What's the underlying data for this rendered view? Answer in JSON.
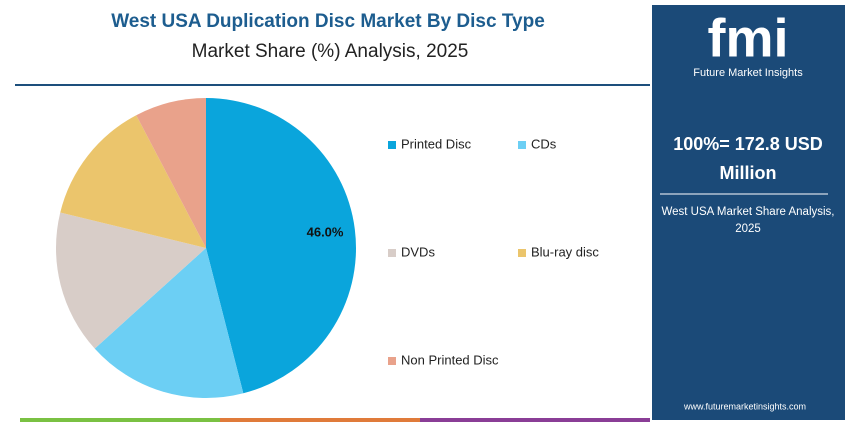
{
  "chart_data": {
    "type": "pie",
    "title": "West USA Duplication Disc Market By Disc Type",
    "subtitle": "Market Share (%) Analysis, 2025",
    "categories": [
      "Printed Disc",
      "CDs",
      "DVDs",
      "Blu-ray disc",
      "Non Printed Disc"
    ],
    "values": [
      46.0,
      17.3,
      15.5,
      13.5,
      7.7
    ],
    "value_labels": [
      "46.0%",
      null,
      null,
      null,
      null
    ],
    "colors": [
      "#0aa5dc",
      "#6ccff4",
      "#d8cdc8",
      "#ebc56c",
      "#e9a28b"
    ]
  },
  "sidebar": {
    "logo": "fmi",
    "brand": "Future Market Insights",
    "total": "100%= 172.8 USD Million",
    "caption": "West USA Market Share Analysis, 2025",
    "url": "www.futuremarketinsights.com"
  }
}
